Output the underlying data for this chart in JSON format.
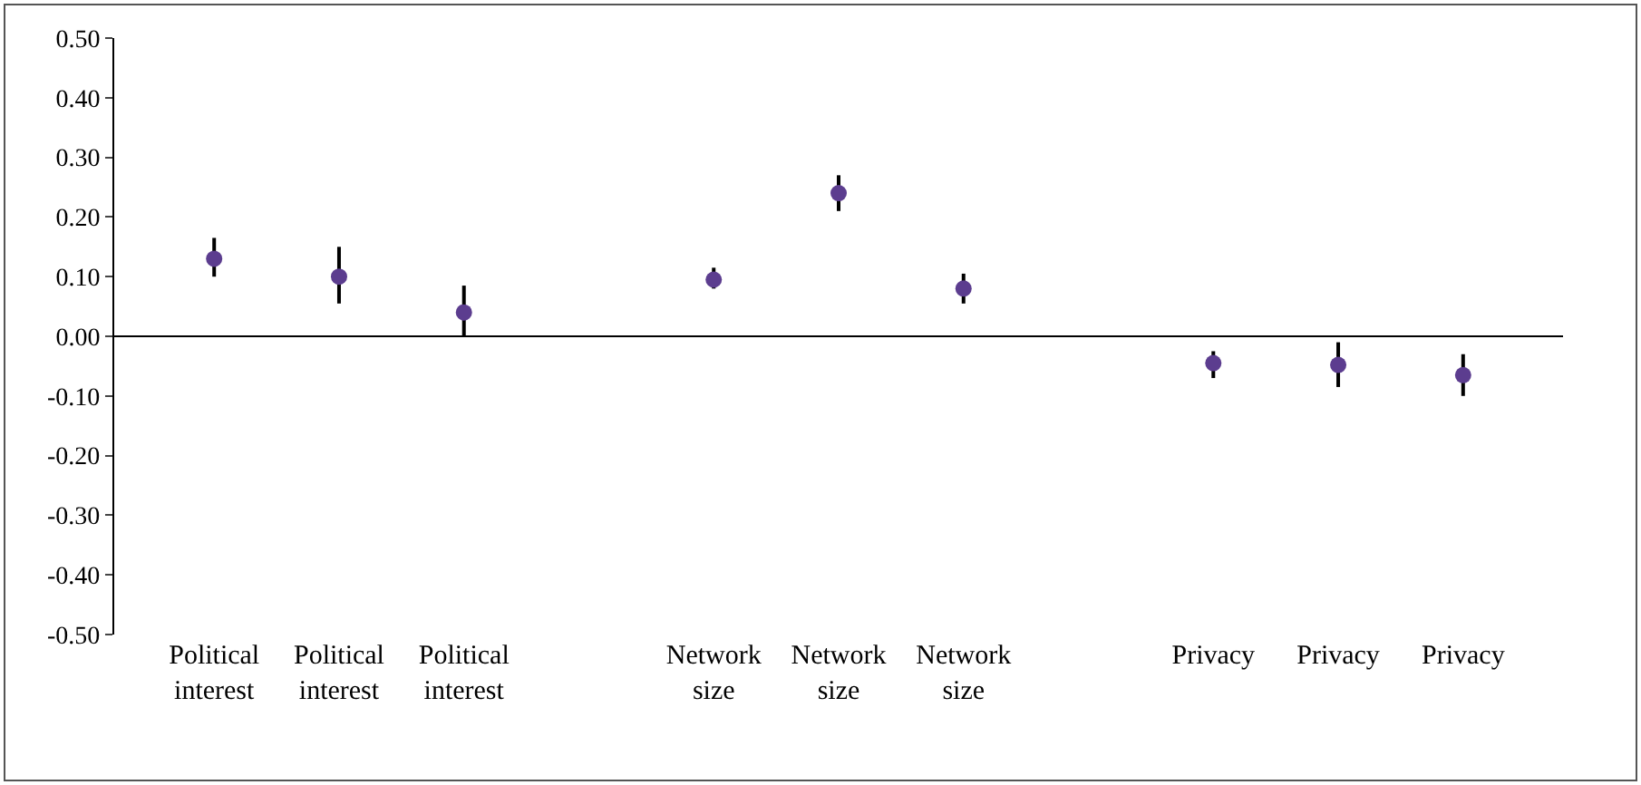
{
  "chart_data": {
    "type": "scatter",
    "categories": [
      "Political interest",
      "Political interest",
      "Political interest",
      null,
      "Network size",
      "Network size",
      "Network size",
      null,
      "Privacy",
      "Privacy",
      "Privacy"
    ],
    "series": [
      {
        "color": "#5c3d8f",
        "values": [
          0.13,
          0.1,
          0.04,
          null,
          0.095,
          0.24,
          0.08,
          null,
          -0.045,
          -0.048,
          -0.065
        ],
        "errors": [
          [
            0.1,
            0.165
          ],
          [
            0.055,
            0.15
          ],
          [
            0.0,
            0.085
          ],
          null,
          [
            0.08,
            0.115
          ],
          [
            0.21,
            0.27
          ],
          [
            0.055,
            0.105
          ],
          null,
          [
            -0.07,
            -0.025
          ],
          [
            -0.085,
            -0.01
          ],
          [
            -0.1,
            -0.03
          ]
        ]
      }
    ],
    "ylim": [
      -0.5,
      0.5
    ],
    "yticks": [
      {
        "value": -0.5,
        "label": "-0.50"
      },
      {
        "value": -0.4,
        "label": "-0.40"
      },
      {
        "value": -0.3,
        "label": "-0.30"
      },
      {
        "value": -0.2,
        "label": "-0.20"
      },
      {
        "value": -0.1,
        "label": "-0.10"
      },
      {
        "value": 0,
        "label": "0.00"
      },
      {
        "value": 0.1,
        "label": "0.10"
      },
      {
        "value": 0.2,
        "label": "0.20"
      },
      {
        "value": 0.3,
        "label": "0.30"
      },
      {
        "value": 0.4,
        "label": "0.40"
      },
      {
        "value": 0.5,
        "label": "0.50"
      }
    ],
    "ref_lines": [
      {
        "axis": "y",
        "value": 0,
        "color": "#000000"
      }
    ],
    "marker": "circle",
    "grid": false
  }
}
